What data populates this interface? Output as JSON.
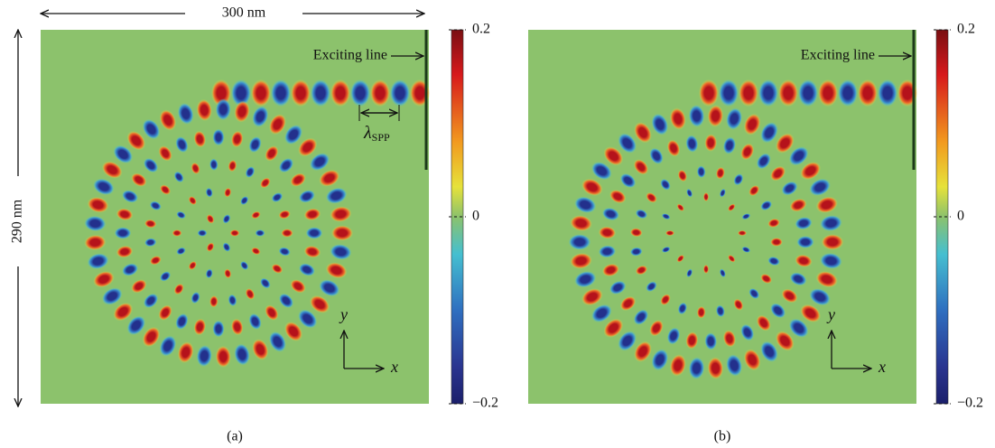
{
  "scale_bar": {
    "width": "300 nm",
    "height": "290 nm"
  },
  "panels": [
    {
      "label": "(a)",
      "annotation": "Exciting line",
      "wavelength": {
        "symbol": "λ",
        "subscript": "SPP"
      },
      "axes": {
        "x": "x",
        "y": "y"
      },
      "colorbar": {
        "ticks": [
          0.2,
          0,
          {
            "value": -0.2,
            "label": "−0.2"
          }
        ]
      }
    },
    {
      "label": "(b)",
      "annotation": "Exciting line",
      "axes": {
        "x": "x",
        "y": "y"
      },
      "colorbar": {
        "ticks": [
          0.2,
          0,
          {
            "value": -0.2,
            "label": "−0.2"
          }
        ]
      }
    }
  ]
}
